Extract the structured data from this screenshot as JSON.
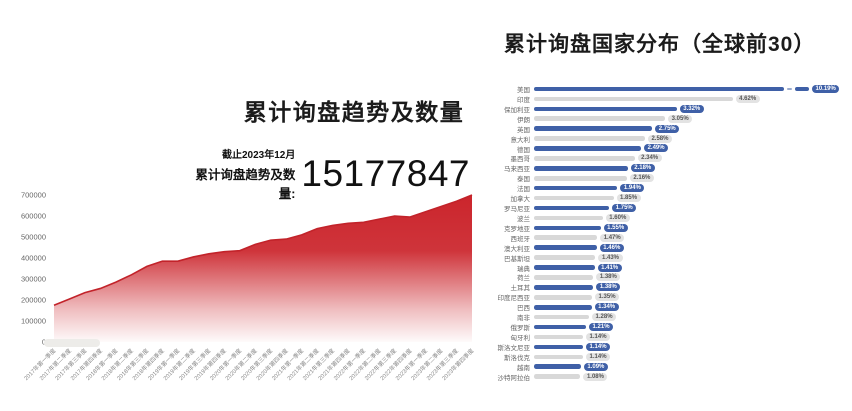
{
  "page": {
    "background": "#ffffff"
  },
  "chart_data": [
    {
      "type": "area",
      "title": "累计询盘趋势及数量",
      "annotation": {
        "as_of": "截止2023年12月",
        "stat_label": "累计询盘趋势及数量:",
        "stat_value": "15177847"
      },
      "x": [
        "2017年第一季度",
        "2017年第二季度",
        "2017年第三季度",
        "2017年第四季度",
        "2018年第一季度",
        "2018年第二季度",
        "2018年第三季度",
        "2018年第四季度",
        "2019年第一季度",
        "2019年第二季度",
        "2019年第三季度",
        "2019年第四季度",
        "2020年第一季度",
        "2020年第二季度",
        "2020年第三季度",
        "2020年第四季度",
        "2021年第一季度",
        "2021年第二季度",
        "2021年第三季度",
        "2021年第四季度",
        "2022年第一季度",
        "2022年第二季度",
        "2022年第三季度",
        "2022年第四季度",
        "2023年第一季度",
        "2023年第二季度",
        "2023年第三季度",
        "2023年第四季度"
      ],
      "values": [
        175000,
        205000,
        235000,
        255000,
        285000,
        320000,
        360000,
        385000,
        385000,
        405000,
        420000,
        430000,
        435000,
        465000,
        485000,
        490000,
        510000,
        540000,
        555000,
        565000,
        570000,
        585000,
        600000,
        595000,
        620000,
        645000,
        670000,
        700000
      ],
      "ylim": [
        0,
        700000
      ],
      "yticks": [
        "0",
        "100000",
        "200000",
        "300000",
        "400000",
        "500000",
        "600000",
        "700000"
      ],
      "area_color": "#cb252c",
      "line_color": "#c2232a",
      "grid": false,
      "legend": false
    },
    {
      "type": "bar",
      "orientation": "horizontal",
      "title": "累计询盘国家分布（全球前30）",
      "categories": [
        "美国",
        "印度",
        "保加利亚",
        "伊朗",
        "英国",
        "意大利",
        "德国",
        "墨西哥",
        "马来西亚",
        "泰国",
        "法国",
        "加拿大",
        "罗马尼亚",
        "波兰",
        "克罗地亚",
        "西班牙",
        "澳大利亚",
        "巴基斯坦",
        "瑞典",
        "荷兰",
        "土耳其",
        "印度尼西亚",
        "巴西",
        "南非",
        "俄罗斯",
        "匈牙利",
        "斯洛文尼亚",
        "斯洛伐克",
        "越南",
        "沙特阿拉伯"
      ],
      "values": [
        10.19,
        4.62,
        3.32,
        3.05,
        2.75,
        2.58,
        2.49,
        2.34,
        2.18,
        2.16,
        1.94,
        1.85,
        1.75,
        1.6,
        1.55,
        1.47,
        1.46,
        1.43,
        1.41,
        1.38,
        1.38,
        1.35,
        1.34,
        1.28,
        1.21,
        1.14,
        1.14,
        1.14,
        1.09,
        1.08
      ],
      "value_labels": [
        "10.19%",
        "4.62%",
        "3.32%",
        "3.05%",
        "2.75%",
        "2.58%",
        "2.49%",
        "2.34%",
        "2.18%",
        "2.16%",
        "1.94%",
        "1.85%",
        "1.75%",
        "1.60%",
        "1.55%",
        "1.47%",
        "1.46%",
        "1.43%",
        "1.41%",
        "1.38%",
        "1.38%",
        "1.35%",
        "1.34%",
        "1.28%",
        "1.21%",
        "1.14%",
        "1.14%",
        "1.14%",
        "1.09%",
        "1.08%"
      ],
      "bar_colors": {
        "odd": "#3f60a7",
        "even": "#d8d8d8"
      },
      "badge_colors": {
        "odd_bg": "#3f60a7",
        "odd_text": "#ffffff",
        "even_bg": "#e3e3e3",
        "even_text": "#555555"
      },
      "axis_break_on_first_bar": true,
      "legend": false,
      "grid": false
    }
  ]
}
